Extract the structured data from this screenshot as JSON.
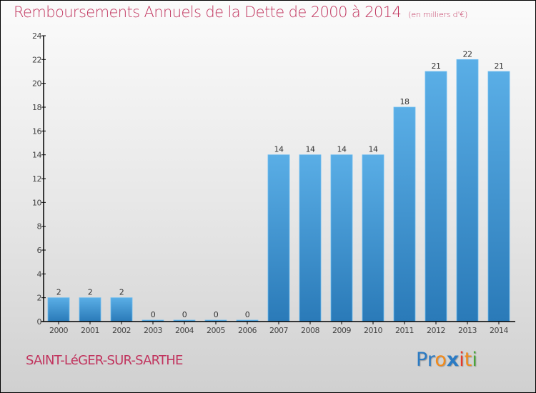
{
  "header": {
    "title": "Remboursements Annuels de la Dette de 2000 à 2014",
    "unit": "(en milliers d'€)"
  },
  "footer": {
    "commune": "SAINT-LéGER-SUR-SARTHE",
    "logo_letters": [
      {
        "char": "P",
        "color": "#2b7bc4"
      },
      {
        "char": "r",
        "color": "#2b7bc4"
      },
      {
        "char": "o",
        "color": "#f28a1a"
      },
      {
        "char": "x",
        "color": "#2b7bc4"
      },
      {
        "char": "i",
        "color": "#e83a2a"
      },
      {
        "char": "t",
        "color": "#f28a1a"
      },
      {
        "char": "i",
        "color": "#4aa63a"
      }
    ]
  },
  "colors": {
    "bar_top": "#5aaee6",
    "bar_bottom": "#2a7ab8",
    "title": "#c1345e"
  },
  "chart_data": {
    "type": "bar",
    "title": "Remboursements Annuels de la Dette de 2000 à 2014",
    "subtitle": "(en milliers d'€)",
    "xlabel": "",
    "ylabel": "",
    "categories": [
      "2000",
      "2001",
      "2002",
      "2003",
      "2004",
      "2005",
      "2006",
      "2007",
      "2008",
      "2009",
      "2010",
      "2011",
      "2012",
      "2013",
      "2014"
    ],
    "values": [
      2,
      2,
      2,
      0,
      0,
      0,
      0,
      14,
      14,
      14,
      14,
      18,
      21,
      22,
      21
    ],
    "ylim": [
      0,
      24
    ],
    "yticks": [
      0,
      2,
      4,
      6,
      8,
      10,
      12,
      14,
      16,
      18,
      20,
      22,
      24
    ],
    "grid": false,
    "legend": "none",
    "data_labels": true
  }
}
